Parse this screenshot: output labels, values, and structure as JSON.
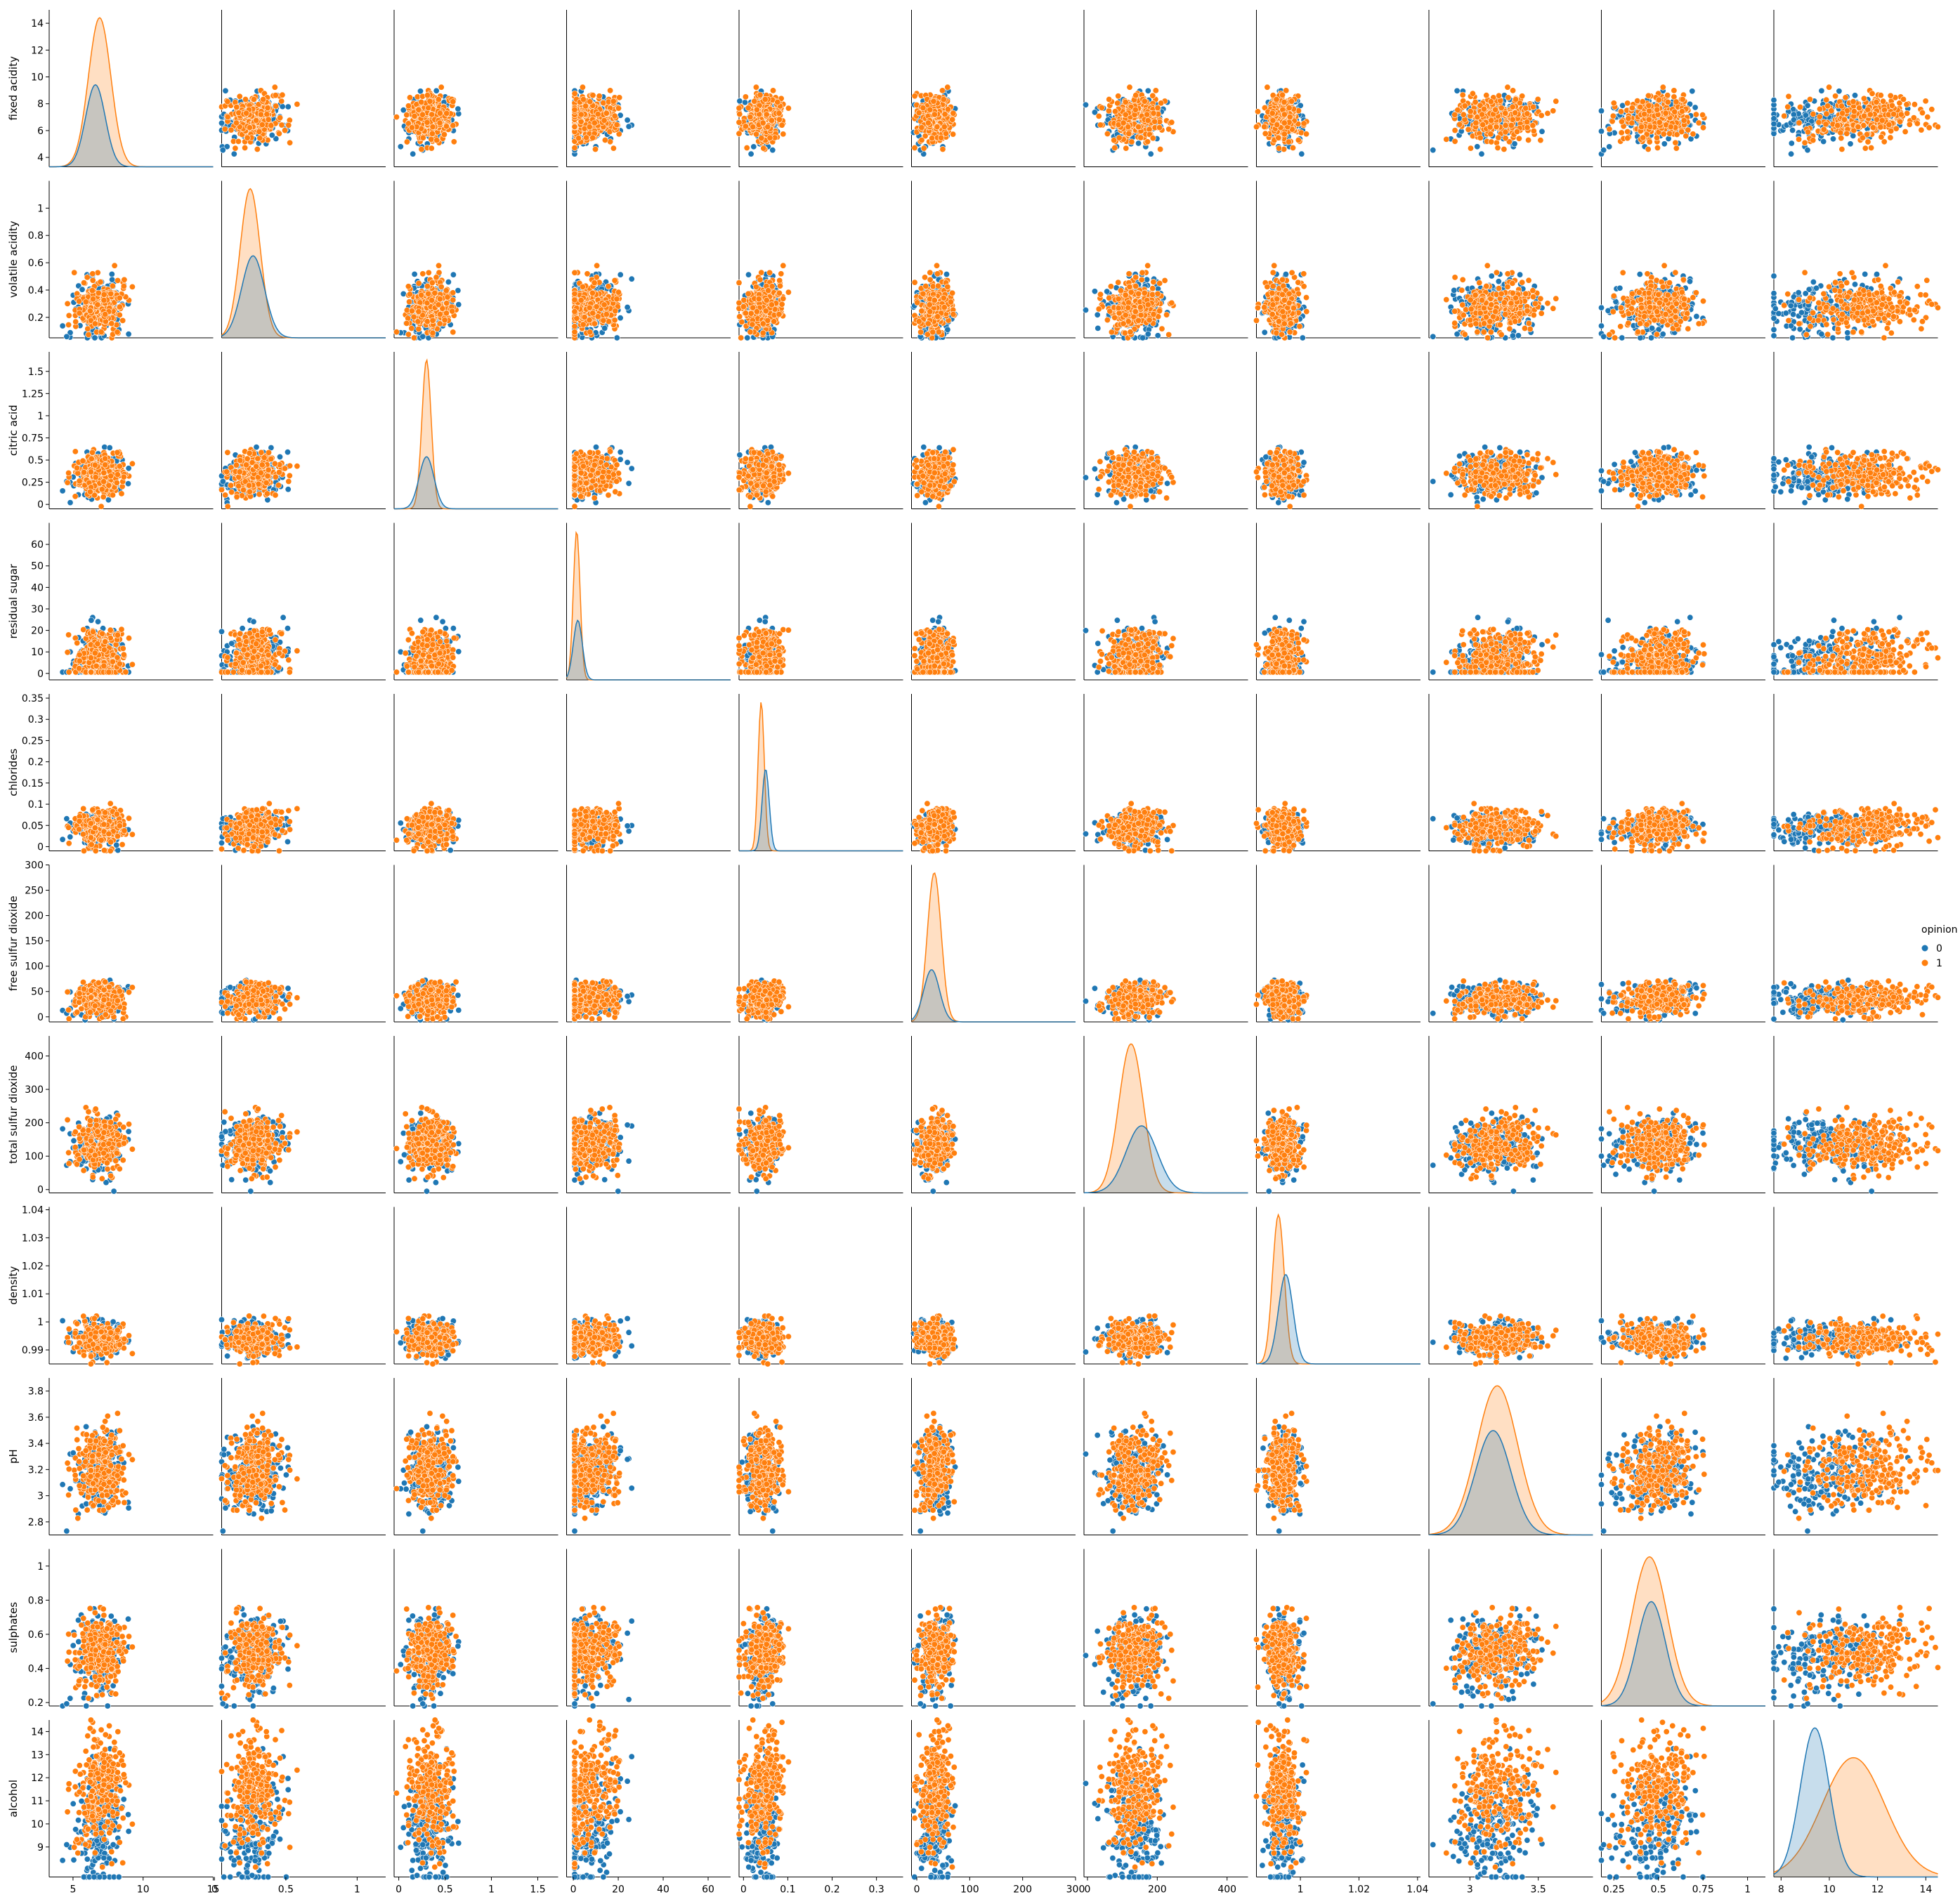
{
  "chart_data": {
    "type": "scatter",
    "kind": "pairplot",
    "hue": "opinion",
    "legend": {
      "title": "opinion",
      "placement": "right-center",
      "entries": [
        {
          "name": "0",
          "color": "#1f77b4"
        },
        {
          "name": "1",
          "color": "#ff7f0e"
        }
      ]
    },
    "variables": [
      {
        "name": "fixed acidity",
        "range": [
          3.3,
          15.0
        ],
        "ticks": [
          4,
          6,
          8,
          10,
          12,
          14
        ],
        "xticks": [
          5,
          10,
          15
        ],
        "center": 6.9,
        "spread": 0.85,
        "kde": [
          {
            "peak": 6.6,
            "sd": 0.7,
            "height": 0.55
          },
          {
            "peak": 6.9,
            "sd": 0.8,
            "height": 1.0
          }
        ]
      },
      {
        "name": "volatile acidity",
        "range": [
          0.05,
          1.2
        ],
        "ticks": [
          0.2,
          0.4,
          0.6,
          0.8,
          1.0
        ],
        "xticks": [
          0.0,
          0.5,
          1.0
        ],
        "center": 0.28,
        "spread": 0.1,
        "kde": [
          {
            "peak": 0.27,
            "sd": 0.08,
            "height": 0.55
          },
          {
            "peak": 0.25,
            "sd": 0.07,
            "height": 1.0
          }
        ]
      },
      {
        "name": "citric acid",
        "range": [
          -0.05,
          1.72
        ],
        "ticks": [
          0.0,
          0.25,
          0.5,
          0.75,
          1.0,
          1.25,
          1.5
        ],
        "xticks": [
          0.0,
          0.5,
          1.0,
          1.5
        ],
        "center": 0.33,
        "spread": 0.12,
        "kde": [
          {
            "peak": 0.3,
            "sd": 0.08,
            "height": 0.35
          },
          {
            "peak": 0.3,
            "sd": 0.05,
            "height": 1.0
          }
        ]
      },
      {
        "name": "residual sugar",
        "range": [
          -3,
          70
        ],
        "ticks": [
          0,
          10,
          20,
          30,
          40,
          50,
          60
        ],
        "xticks": [
          0,
          20,
          40,
          60
        ],
        "center": 6.0,
        "spread": 5.0,
        "kde": [
          {
            "peak": 2.0,
            "sd": 2.0,
            "height": 0.4
          },
          {
            "peak": 1.5,
            "sd": 1.5,
            "height": 1.0
          }
        ]
      },
      {
        "name": "chlorides",
        "range": [
          -0.01,
          0.36
        ],
        "ticks": [
          0.0,
          0.05,
          0.1,
          0.15,
          0.2,
          0.25,
          0.3,
          0.35
        ],
        "xticks": [
          0.0,
          0.1,
          0.2,
          0.3
        ],
        "center": 0.045,
        "spread": 0.02,
        "kde": [
          {
            "peak": 0.05,
            "sd": 0.008,
            "height": 0.55
          },
          {
            "peak": 0.04,
            "sd": 0.007,
            "height": 1.0
          }
        ]
      },
      {
        "name": "free sulfur dioxide",
        "range": [
          -10,
          300
        ],
        "ticks": [
          0,
          50,
          100,
          150,
          200,
          250,
          300
        ],
        "xticks": [
          0,
          100,
          200,
          300
        ],
        "center": 35,
        "spread": 16,
        "kde": [
          {
            "peak": 28,
            "sd": 15,
            "height": 0.35
          },
          {
            "peak": 33,
            "sd": 13,
            "height": 1.0
          }
        ]
      },
      {
        "name": "total sulfur dioxide",
        "range": [
          -10,
          460
        ],
        "ticks": [
          0,
          100,
          200,
          300,
          400
        ],
        "xticks": [
          0,
          200,
          400
        ],
        "center": 138,
        "spread": 42,
        "kde": [
          {
            "peak": 155,
            "sd": 45,
            "height": 0.45
          },
          {
            "peak": 125,
            "sd": 35,
            "height": 1.0
          }
        ]
      },
      {
        "name": "density",
        "range": [
          0.985,
          1.041
        ],
        "ticks": [
          0.99,
          1.0,
          1.01,
          1.02,
          1.03,
          1.04
        ],
        "xticks": [
          1.0,
          1.02,
          1.04
        ],
        "center": 0.994,
        "spread": 0.003,
        "kde": [
          {
            "peak": 0.995,
            "sd": 0.0025,
            "height": 0.6
          },
          {
            "peak": 0.9925,
            "sd": 0.002,
            "height": 1.0
          }
        ]
      },
      {
        "name": "pH",
        "range": [
          2.7,
          3.9
        ],
        "ticks": [
          2.8,
          3.0,
          3.2,
          3.4,
          3.6,
          3.8
        ],
        "xticks": [
          3.0,
          3.5
        ],
        "center": 3.19,
        "spread": 0.15,
        "kde": [
          {
            "peak": 3.17,
            "sd": 0.13,
            "height": 0.7
          },
          {
            "peak": 3.2,
            "sd": 0.15,
            "height": 1.0
          }
        ]
      },
      {
        "name": "sulphates",
        "range": [
          0.18,
          1.1
        ],
        "ticks": [
          0.2,
          0.4,
          0.6,
          0.8,
          1.0
        ],
        "xticks": [
          0.25,
          0.5,
          0.75,
          1.0
        ],
        "center": 0.49,
        "spread": 0.11,
        "kde": [
          {
            "peak": 0.46,
            "sd": 0.08,
            "height": 0.7
          },
          {
            "peak": 0.45,
            "sd": 0.1,
            "height": 1.0
          }
        ]
      },
      {
        "name": "alcohol",
        "range": [
          7.7,
          14.5
        ],
        "ticks": [
          9,
          10,
          11,
          12,
          13,
          14
        ],
        "xticks": [
          8,
          10,
          12,
          14
        ],
        "center": 10.5,
        "spread": 1.2,
        "kde": [
          {
            "peak": 9.4,
            "sd": 0.6,
            "height": 1.0
          },
          {
            "peak": 11.0,
            "sd": 1.3,
            "height": 0.8
          }
        ]
      }
    ],
    "groups": [
      {
        "name": "0",
        "color": "#1f77b4",
        "count": 220
      },
      {
        "name": "1",
        "color": "#ff7f0e",
        "count": 260
      }
    ]
  }
}
